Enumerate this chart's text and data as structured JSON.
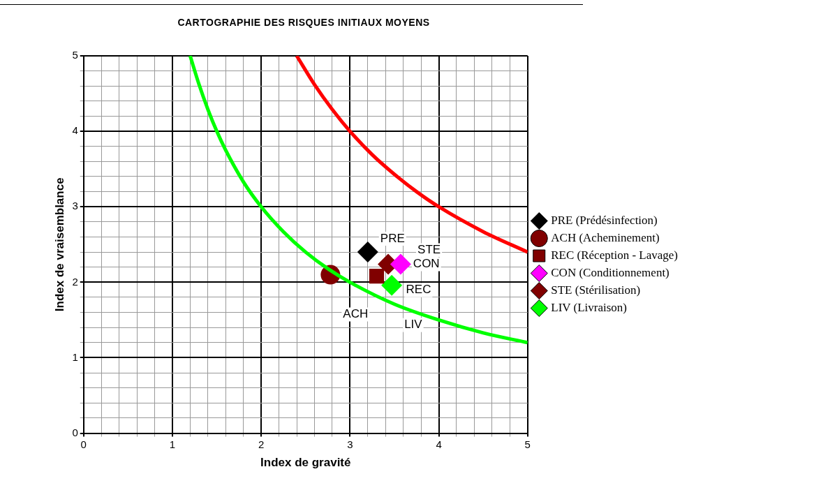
{
  "chart_data": {
    "type": "scatter",
    "title": "CARTOGRAPHIE DES RISQUES INITIAUX MOYENS",
    "xlabel": "Index de gravité",
    "ylabel": "Index de vraisemblance",
    "xlim": [
      0,
      5
    ],
    "ylim": [
      0,
      5
    ],
    "xticks": [
      0,
      {
        "value": 0.2,
        "label": null
      },
      {
        "value": 0.4,
        "label": null
      },
      {
        "value": 0.6,
        "label": null
      },
      {
        "value": 0.8,
        "label": null
      },
      1,
      {
        "value": 1.2,
        "label": null
      },
      {
        "value": 1.4,
        "label": null
      },
      {
        "value": 1.6,
        "label": null
      },
      {
        "value": 1.8,
        "label": null
      },
      2,
      {
        "value": 2.2,
        "label": null
      },
      {
        "value": 2.4,
        "label": null
      },
      {
        "value": 2.6,
        "label": null
      },
      {
        "value": 2.8,
        "label": null
      },
      3,
      {
        "value": 3.2,
        "label": null
      },
      {
        "value": 3.4,
        "label": null
      },
      {
        "value": 3.6,
        "label": null
      },
      {
        "value": 3.8,
        "label": null
      },
      4,
      {
        "value": 4.2,
        "label": null
      },
      {
        "value": 4.4,
        "label": null
      },
      {
        "value": 4.6,
        "label": null
      },
      {
        "value": 4.8,
        "label": null
      },
      5
    ],
    "yticks": [
      0,
      {
        "value": 0.2,
        "label": null
      },
      {
        "value": 0.4,
        "label": null
      },
      {
        "value": 0.6,
        "label": null
      },
      {
        "value": 0.8,
        "label": null
      },
      1,
      {
        "value": 1.2,
        "label": null
      },
      {
        "value": 1.4,
        "label": null
      },
      {
        "value": 1.6,
        "label": null
      },
      {
        "value": 1.8,
        "label": null
      },
      2,
      {
        "value": 2.2,
        "label": null
      },
      {
        "value": 2.4,
        "label": null
      },
      {
        "value": 2.6,
        "label": null
      },
      {
        "value": 2.8,
        "label": null
      },
      3,
      {
        "value": 3.2,
        "label": null
      },
      {
        "value": 3.4,
        "label": null
      },
      {
        "value": 3.6,
        "label": null
      },
      {
        "value": 3.8,
        "label": null
      },
      4,
      {
        "value": 4.2,
        "label": null
      },
      {
        "value": 4.4,
        "label": null
      },
      {
        "value": 4.6,
        "label": null
      },
      {
        "value": 4.8,
        "label": null
      },
      5
    ],
    "grid": true,
    "legend": "right",
    "series": [
      {
        "type": "line",
        "color": "#00ff00",
        "marker": "none",
        "x": [
          1.2,
          1.3,
          1.4,
          1.5,
          1.6,
          1.8,
          2,
          2.25,
          2.5,
          2.75,
          3,
          3.5,
          4,
          4.5,
          5
        ],
        "values": [
          5,
          4.62,
          4.29,
          4,
          3.75,
          3.33,
          3,
          2.67,
          2.4,
          2.18,
          2,
          1.71,
          1.5,
          1.33,
          1.2
        ]
      },
      {
        "type": "line",
        "color": "#ff0000",
        "marker": "none",
        "x": [
          2.4,
          2.6,
          2.8,
          3,
          3.25,
          3.5,
          3.75,
          4,
          4.5,
          5
        ],
        "values": [
          5,
          4.62,
          4.29,
          4,
          3.69,
          3.43,
          3.2,
          3,
          2.67,
          2.4
        ]
      },
      {
        "name": "PRE (Prédésinfection)",
        "color": "#000000",
        "marker": "diamond",
        "x": [
          3.2
        ],
        "values": [
          2.4
        ]
      },
      {
        "name": "ACH (Acheminement)",
        "color": "#800000",
        "marker": "circle",
        "x": [
          2.78
        ],
        "values": [
          2.1
        ]
      },
      {
        "name": "REC (Réception - Lavage)",
        "color": "#800000",
        "marker": "square",
        "x": [
          3.3
        ],
        "values": [
          2.08
        ]
      },
      {
        "name": "CON (Conditionnement)",
        "color": "#ff00ff",
        "marker": "diamond",
        "x": [
          3.57
        ],
        "values": [
          2.24
        ]
      },
      {
        "name": "STE (Stérilisation)",
        "color": "#800000",
        "marker": "diamond",
        "x": [
          3.43
        ],
        "values": [
          2.24
        ]
      },
      {
        "name": "LIV (Livraison)",
        "color": "#00ff00",
        "marker": "diamond",
        "x": [
          3.47
        ],
        "values": [
          1.96
        ]
      }
    ],
    "annotations": [
      {
        "text": "PRE",
        "x": 3.2,
        "y": 2.4
      },
      {
        "text": "ACH",
        "x": 2.78,
        "y": 2.1
      },
      {
        "text": "REC",
        "x": 3.3,
        "y": 2.08
      },
      {
        "text": "CON",
        "x": 3.57,
        "y": 2.24
      },
      {
        "text": "STE",
        "x": 3.43,
        "y": 2.24
      },
      {
        "text": "LIV",
        "x": 3.47,
        "y": 1.96
      }
    ]
  }
}
